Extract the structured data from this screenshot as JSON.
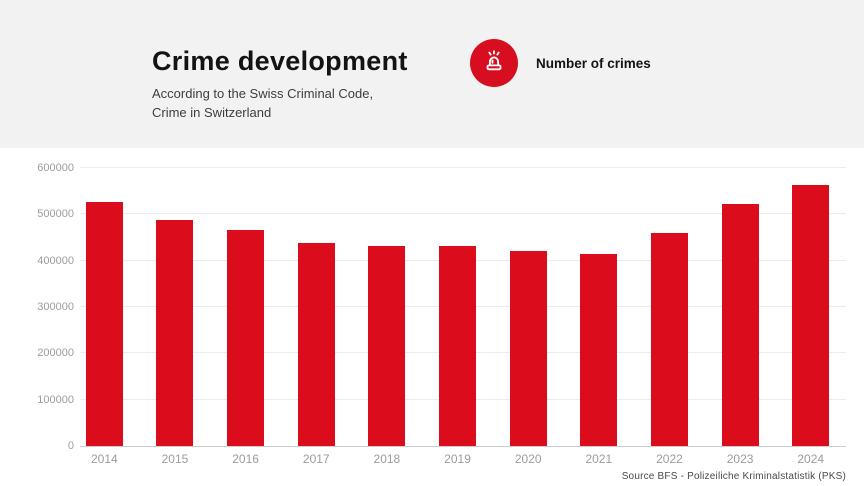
{
  "header": {
    "title": "Crime development",
    "subtitle_lines": [
      "According to the Swiss Criminal Code,",
      "Crime in Switzerland"
    ],
    "background_color": "#f2f2f2",
    "legend": {
      "icon": "siren-icon",
      "icon_bg_color": "#d60e1f",
      "label": "Number of crimes"
    }
  },
  "chart_data": {
    "type": "bar",
    "title": "Crime development",
    "subtitle": "According to the Swiss Criminal Code, Crime in Switzerland",
    "series_name": "Number of crimes",
    "categories": [
      "2014",
      "2015",
      "2016",
      "2017",
      "2018",
      "2019",
      "2020",
      "2021",
      "2022",
      "2023",
      "2024"
    ],
    "values": [
      526000,
      487000,
      467000,
      438000,
      432000,
      431000,
      421500,
      415000,
      459000,
      522500,
      564000
    ],
    "bar_color": "#db0d1d",
    "ylim": [
      0,
      600000
    ],
    "yticks": [
      0,
      100000,
      200000,
      300000,
      400000,
      500000,
      600000
    ],
    "grid": true,
    "legend_position": "top",
    "xlabel": "",
    "ylabel": ""
  },
  "footer": {
    "source": "Source BFS - Polizeiliche Kriminalstatistik (PKS)"
  },
  "colors": {
    "bar": "#db0d1d",
    "header_bg": "#f2f2f2",
    "axis_label": "#9c9c9c",
    "gridline": "#ececec"
  }
}
